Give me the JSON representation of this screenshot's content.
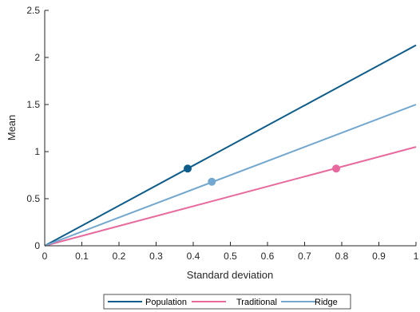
{
  "chart_data": {
    "type": "line",
    "xlabel": "Standard deviation",
    "ylabel": "Mean",
    "xlim": [
      0,
      1
    ],
    "ylim": [
      0,
      2.5
    ],
    "xticks": [
      0,
      0.1,
      0.2,
      0.3,
      0.4,
      0.5,
      0.6,
      0.7,
      0.8,
      0.9,
      1
    ],
    "xtick_labels": [
      "0",
      "0.1",
      "0.2",
      "0.3",
      "0.4",
      "0.5",
      "0.6",
      "0.7",
      "0.8",
      "0.9",
      "1"
    ],
    "yticks": [
      0,
      0.5,
      1,
      1.5,
      2,
      2.5
    ],
    "ytick_labels": [
      "0",
      "0.5",
      "1",
      "1.5",
      "2",
      "2.5"
    ],
    "grid": false,
    "legend_position": "bottom-center",
    "series": [
      {
        "name": "Population",
        "color": "#0d5c8a",
        "x": [
          0,
          1
        ],
        "y": [
          0,
          2.13
        ],
        "marker": {
          "x": 0.385,
          "y": 0.82
        }
      },
      {
        "name": "Traditional",
        "color": "#e8699e",
        "x": [
          0,
          1
        ],
        "y": [
          0,
          1.05
        ],
        "marker": {
          "x": 0.785,
          "y": 0.82
        }
      },
      {
        "name": "Ridge",
        "color": "#72a7cf",
        "x": [
          0,
          1
        ],
        "y": [
          0,
          1.5
        ],
        "marker": {
          "x": 0.45,
          "y": 0.68
        }
      }
    ]
  }
}
